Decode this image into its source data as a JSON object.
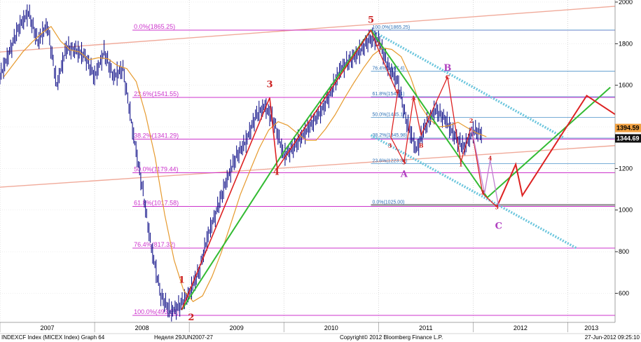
{
  "chart_data": {
    "type": "candlestick",
    "instrument": "INDEXCF Index (MICEX Index) Graph 64",
    "period_label": "Неделя 29JUN2007-27",
    "copyright": "Copyright© 2012 Bloomberg Finance L.P.",
    "timestamp": "27-Jun-2012 09:25:10",
    "ylim": [
      460,
      2010
    ],
    "y_ticks": [
      600,
      800,
      1000,
      1200,
      1400,
      1600,
      1800,
      2000
    ],
    "x_range": [
      2007.0,
      2013.5
    ],
    "x_ticks": [
      {
        "label": "2007",
        "x": 2007.0
      },
      {
        "label": "2008",
        "x": 2008.0
      },
      {
        "label": "2009",
        "x": 2009.0
      },
      {
        "label": "2010",
        "x": 2010.0
      },
      {
        "label": "2011",
        "x": 2011.0
      },
      {
        "label": "2012",
        "x": 2012.0
      },
      {
        "label": "2013",
        "x": 2013.0
      }
    ],
    "price_path": [
      [
        2007.0,
        1640
      ],
      [
        2007.1,
        1760
      ],
      [
        2007.2,
        1880
      ],
      [
        2007.3,
        1950
      ],
      [
        2007.4,
        1810
      ],
      [
        2007.5,
        1890
      ],
      [
        2007.6,
        1600
      ],
      [
        2007.7,
        1780
      ],
      [
        2007.8,
        1770
      ],
      [
        2007.9,
        1740
      ],
      [
        2008.0,
        1640
      ],
      [
        2008.1,
        1760
      ],
      [
        2008.2,
        1640
      ],
      [
        2008.3,
        1680
      ],
      [
        2008.4,
        1390
      ],
      [
        2008.5,
        1120
      ],
      [
        2008.6,
        820
      ],
      [
        2008.7,
        590
      ],
      [
        2008.8,
        510
      ],
      [
        2008.9,
        540
      ],
      [
        2009.0,
        600
      ],
      [
        2009.1,
        700
      ],
      [
        2009.2,
        880
      ],
      [
        2009.3,
        1010
      ],
      [
        2009.4,
        1150
      ],
      [
        2009.5,
        1260
      ],
      [
        2009.6,
        1330
      ],
      [
        2009.7,
        1450
      ],
      [
        2009.8,
        1500
      ],
      [
        2009.9,
        1420
      ],
      [
        2010.0,
        1260
      ],
      [
        2010.1,
        1300
      ],
      [
        2010.2,
        1360
      ],
      [
        2010.3,
        1420
      ],
      [
        2010.4,
        1480
      ],
      [
        2010.5,
        1570
      ],
      [
        2010.6,
        1680
      ],
      [
        2010.7,
        1720
      ],
      [
        2010.8,
        1760
      ],
      [
        2010.9,
        1820
      ],
      [
        2011.0,
        1820
      ],
      [
        2011.1,
        1690
      ],
      [
        2011.2,
        1620
      ],
      [
        2011.3,
        1420
      ],
      [
        2011.4,
        1290
      ],
      [
        2011.5,
        1410
      ],
      [
        2011.6,
        1480
      ],
      [
        2011.7,
        1440
      ],
      [
        2011.8,
        1360
      ],
      [
        2011.9,
        1300
      ],
      [
        2012.0,
        1380
      ],
      [
        2012.1,
        1370
      ]
    ],
    "moving_average_color": "#e69a2e",
    "price_color": "#000080",
    "fibonacci_levels_large": [
      {
        "label": "0.0%(1865.25)",
        "value": 1865.25
      },
      {
        "label": "23.6%(1541.55)",
        "value": 1541.55
      },
      {
        "label": "38.2%(1341.29)",
        "value": 1341.29
      },
      {
        "label": "50.0%(1179.44)",
        "value": 1179.44
      },
      {
        "label": "61.8%(1017.58)",
        "value": 1017.58
      },
      {
        "label": "76.4%(817.32)",
        "value": 817.32
      },
      {
        "label": "100.0%(493.62)",
        "value": 493.62
      }
    ],
    "fibonacci_levels_small": [
      {
        "label": "100.0%(1865.25)",
        "value": 1865.25
      },
      {
        "label": "76.4%(1667.4)",
        "value": 1667.4
      },
      {
        "label": "61.8%(1545.1)",
        "value": 1545.1
      },
      {
        "label": "50.0%(1445.1)",
        "value": 1445.1
      },
      {
        "label": "38.2%(1345.98)",
        "value": 1345.98
      },
      {
        "label": "23.6%(1223.30)",
        "value": 1223.3
      },
      {
        "label": "0.0%(1025.00)",
        "value": 1025.0
      }
    ],
    "fib_color": "#cc33cc",
    "fib_small_color": "#4a90c8",
    "price_tags": [
      {
        "label": "1394.59",
        "value": 1394.59,
        "bg": "#f0a040",
        "fg": "#000000"
      },
      {
        "label": "1344.69",
        "value": 1344.69,
        "bg": "#111111",
        "fg": "#ffffff"
      }
    ],
    "wave_labels_main": [
      {
        "text": "1",
        "x": 2008.92,
        "y": 650,
        "color": "#cc2020"
      },
      {
        "text": "2",
        "x": 2009.02,
        "y": 470,
        "color": "#cc2020"
      },
      {
        "text": "3",
        "x": 2009.85,
        "y": 1590,
        "color": "#cc2020"
      },
      {
        "text": "4",
        "x": 2009.92,
        "y": 1170,
        "color": "#cc2020"
      },
      {
        "text": "5",
        "x": 2010.92,
        "y": 1900,
        "color": "#cc2020"
      },
      {
        "text": "A",
        "x": 2011.27,
        "y": 1160,
        "color": "#b040c0"
      },
      {
        "text": "B",
        "x": 2011.73,
        "y": 1670,
        "color": "#b040c0"
      },
      {
        "text": "C",
        "x": 2012.27,
        "y": 910,
        "color": "#b040c0"
      }
    ],
    "wave_labels_minor": [
      {
        "text": "2",
        "x": 2011.0,
        "y": 1790,
        "color": "#cc2020"
      },
      {
        "text": "4",
        "x": 2011.2,
        "y": 1560,
        "color": "#cc2020"
      },
      {
        "text": "A",
        "x": 2011.37,
        "y": 1530,
        "color": "#cc2020"
      },
      {
        "text": "3",
        "x": 2011.12,
        "y": 1300,
        "color": "#cc2020"
      },
      {
        "text": "5",
        "x": 2011.27,
        "y": 1220,
        "color": "#cc2020"
      },
      {
        "text": "B",
        "x": 2011.45,
        "y": 1300,
        "color": "#cc2020"
      },
      {
        "text": "C",
        "x": 2011.73,
        "y": 1630,
        "color": "#cc2020"
      },
      {
        "text": "2",
        "x": 2011.98,
        "y": 1420,
        "color": "#cc2020"
      },
      {
        "text": "1",
        "x": 2011.87,
        "y": 1210,
        "color": "#cc2020"
      },
      {
        "text": "3",
        "x": 2012.1,
        "y": 1075,
        "color": "#cc2020"
      },
      {
        "text": "4",
        "x": 2012.18,
        "y": 1240,
        "color": "#cc2020"
      },
      {
        "text": "5",
        "x": 2012.25,
        "y": 1005,
        "color": "#cc2020"
      }
    ],
    "green_wave_path": [
      [
        2008.92,
        520
      ],
      [
        2010.0,
        1280
      ],
      [
        2010.92,
        1865
      ],
      [
        2012.15,
        1060
      ],
      [
        2013.45,
        1590
      ]
    ],
    "red_impulse_path": [
      [
        2008.92,
        520
      ],
      [
        2009.85,
        1540
      ],
      [
        2009.93,
        1200
      ],
      [
        2010.92,
        1865
      ]
    ],
    "red_correction_path": [
      [
        2010.92,
        1865
      ],
      [
        2011.0,
        1770
      ],
      [
        2011.2,
        1560
      ],
      [
        2011.13,
        1350
      ],
      [
        2011.27,
        1230
      ],
      [
        2011.37,
        1540
      ],
      [
        2011.45,
        1360
      ],
      [
        2011.73,
        1640
      ],
      [
        2011.87,
        1230
      ],
      [
        2011.98,
        1400
      ],
      [
        2012.1,
        1080
      ],
      [
        2012.25,
        1015
      ]
    ],
    "red_projection_path": [
      [
        2012.25,
        1015
      ],
      [
        2012.45,
        1220
      ],
      [
        2012.52,
        1070
      ],
      [
        2013.2,
        1550
      ],
      [
        2013.5,
        1460
      ]
    ],
    "violet_projection_path": [
      [
        2011.98,
        1400
      ],
      [
        2012.12,
        1080
      ],
      [
        2012.18,
        1240
      ],
      [
        2012.27,
        1015
      ]
    ],
    "channel_upper": [
      [
        2010.92,
        1865
      ],
      [
        2012.95,
        1350
      ]
    ],
    "channel_lower": [
      [
        2010.92,
        1360
      ],
      [
        2013.1,
        815
      ]
    ],
    "channel_color": "#6cc6dd",
    "salmon_lines": [
      {
        "from": [
          2007.0,
          1760
        ],
        "to": [
          2013.5,
          1980
        ]
      },
      {
        "from": [
          2007.0,
          1110
        ],
        "to": [
          2013.5,
          1310
        ]
      }
    ],
    "salmon_color": "#f0aa9a"
  }
}
